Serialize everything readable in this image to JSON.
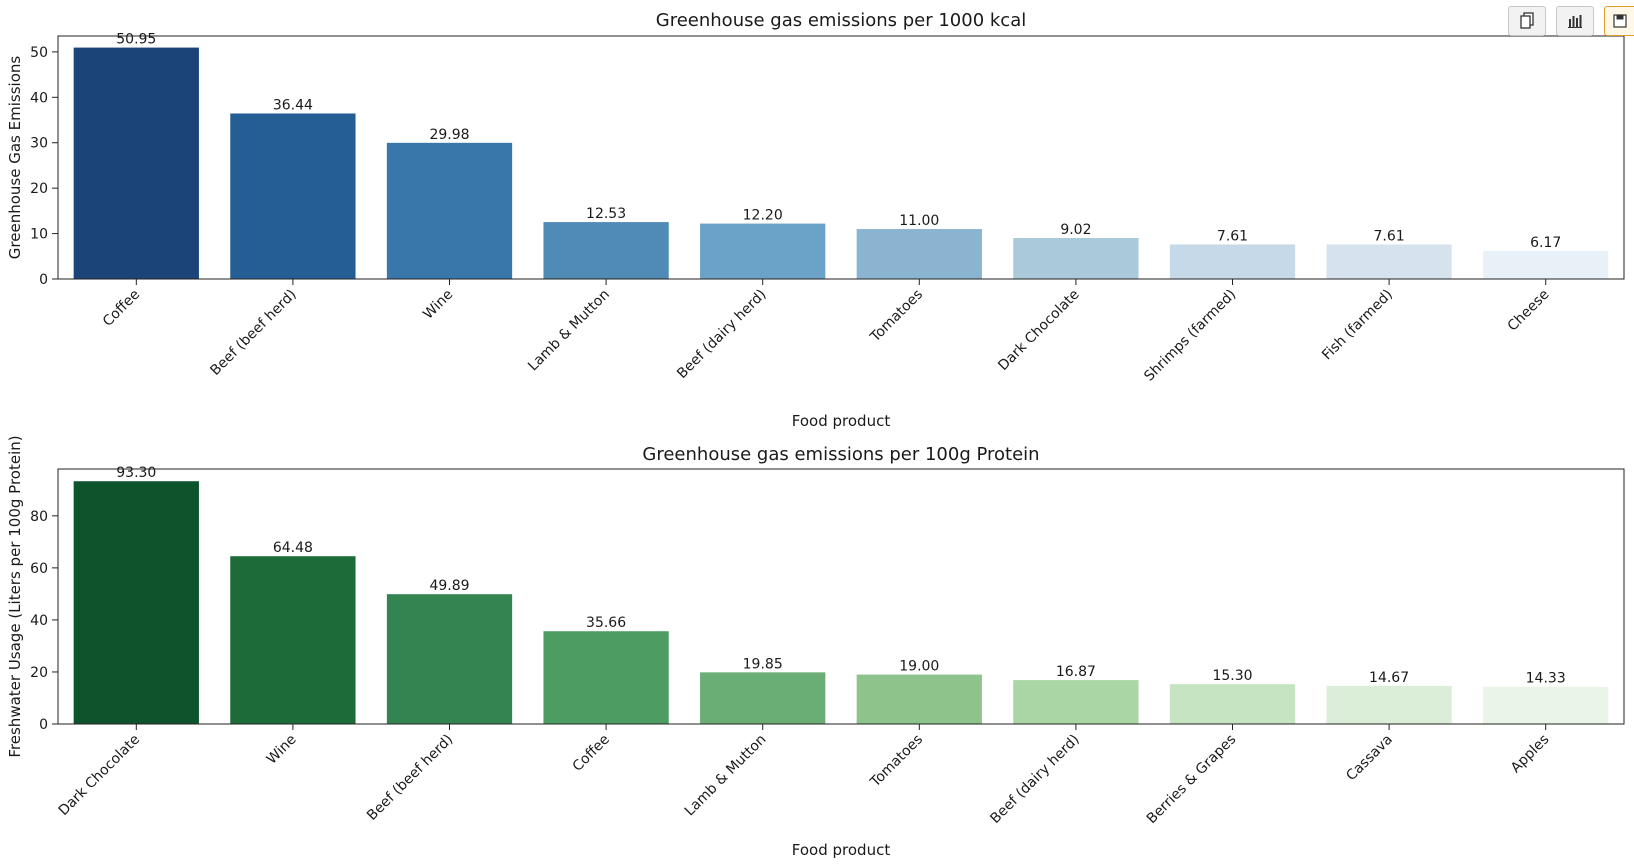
{
  "toolbar": {
    "buttons": [
      {
        "icon": "copy-icon"
      },
      {
        "icon": "bar-chart-icon"
      },
      {
        "icon": "save-icon"
      }
    ]
  },
  "chart_data": [
    {
      "type": "bar",
      "title": "Greenhouse gas emissions per 1000 kcal",
      "xlabel": "Food product",
      "ylabel": "Greenhouse Gas Emissions",
      "ylim": [
        0,
        53.5
      ],
      "yticks": [
        0,
        10,
        20,
        30,
        40,
        50
      ],
      "categories": [
        "Coffee",
        "Beef (beef herd)",
        "Wine",
        "Lamb & Mutton",
        "Beef (dairy herd)",
        "Tomatoes",
        "Dark Chocolate",
        "Shrimps (farmed)",
        "Fish (farmed)",
        "Cheese"
      ],
      "values": [
        50.95,
        36.44,
        29.98,
        12.53,
        12.2,
        11.0,
        9.02,
        7.61,
        7.61,
        6.17
      ],
      "value_labels": [
        "50.95",
        "36.44",
        "29.98",
        "12.53",
        "12.20",
        "11.00",
        "9.02",
        "7.61",
        "7.61",
        "6.17"
      ],
      "colors": [
        "#1b4479",
        "#255e94",
        "#3976aa",
        "#508bb6",
        "#6ba2c7",
        "#8ab4cf",
        "#aac9da",
        "#c6d9e8",
        "#d6e3ef",
        "#e9f1f8"
      ],
      "grid": false,
      "legend": "none"
    },
    {
      "type": "bar",
      "title": "Greenhouse gas emissions per 100g Protein",
      "xlabel": "Food product",
      "ylabel": "Freshwater Usage (Liters per 100g Protein)",
      "ylim": [
        0,
        98
      ],
      "yticks": [
        0,
        20,
        40,
        60,
        80
      ],
      "categories": [
        "Dark Chocolate",
        "Wine",
        "Beef (beef herd)",
        "Coffee",
        "Lamb & Mutton",
        "Tomatoes",
        "Beef (dairy herd)",
        "Berries & Grapes",
        "Cassava",
        "Apples"
      ],
      "values": [
        93.3,
        64.48,
        49.89,
        35.66,
        19.85,
        19.0,
        16.87,
        15.3,
        14.67,
        14.33
      ],
      "value_labels": [
        "93.30",
        "64.48",
        "49.89",
        "35.66",
        "19.85",
        "19.00",
        "16.87",
        "15.30",
        "14.67",
        "14.33"
      ],
      "colors": [
        "#0d532b",
        "#1c6b38",
        "#338450",
        "#4d9d63",
        "#6aae76",
        "#8ec48c",
        "#aad6a6",
        "#c6e3c2",
        "#dbeed7",
        "#eaf5e7"
      ],
      "grid": false,
      "legend": "none"
    }
  ]
}
